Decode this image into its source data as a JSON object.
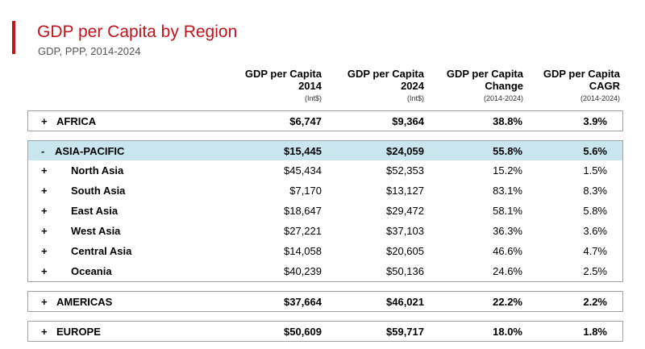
{
  "header": {
    "title": "GDP per Capita by Region",
    "subtitle": "GDP, PPP, 2014-2024"
  },
  "columns": [
    {
      "line1": "GDP per Capita",
      "line2": "2014",
      "unit": "(Int$)"
    },
    {
      "line1": "GDP per Capita",
      "line2": "2024",
      "unit": "(Int$)"
    },
    {
      "line1": "GDP per Capita",
      "line2": "Change",
      "unit": "(2014-2024)"
    },
    {
      "line1": "GDP per Capita",
      "line2": "CAGR",
      "unit": "(2014-2024)"
    }
  ],
  "groups": {
    "africa": {
      "toggle": "+",
      "name": "AFRICA",
      "values": [
        "$6,747",
        "$9,364",
        "38.8%",
        "3.9%"
      ]
    },
    "asia": {
      "toggle": "-",
      "name": "ASIA-PACIFIC",
      "values": [
        "$15,445",
        "$24,059",
        "55.8%",
        "5.6%"
      ],
      "children": [
        {
          "toggle": "+",
          "name": "North Asia",
          "values": [
            "$45,434",
            "$52,353",
            "15.2%",
            "1.5%"
          ]
        },
        {
          "toggle": "+",
          "name": "South Asia",
          "values": [
            "$7,170",
            "$13,127",
            "83.1%",
            "8.3%"
          ]
        },
        {
          "toggle": "+",
          "name": "East Asia",
          "values": [
            "$18,647",
            "$29,472",
            "58.1%",
            "5.8%"
          ]
        },
        {
          "toggle": "+",
          "name": "West Asia",
          "values": [
            "$27,221",
            "$37,103",
            "36.3%",
            "3.6%"
          ]
        },
        {
          "toggle": "+",
          "name": "Central Asia",
          "values": [
            "$14,058",
            "$20,605",
            "46.6%",
            "4.7%"
          ]
        },
        {
          "toggle": "+",
          "name": "Oceania",
          "values": [
            "$40,239",
            "$50,136",
            "24.6%",
            "2.5%"
          ]
        }
      ]
    },
    "americas": {
      "toggle": "+",
      "name": "AMERICAS",
      "values": [
        "$37,664",
        "$46,021",
        "22.2%",
        "2.2%"
      ]
    },
    "europe": {
      "toggle": "+",
      "name": "EUROPE",
      "values": [
        "$50,609",
        "$59,717",
        "18.0%",
        "1.8%"
      ]
    }
  },
  "colors": {
    "accent": "#c0151f",
    "highlight": "#c9e6ef",
    "border": "#9fa3a8"
  }
}
